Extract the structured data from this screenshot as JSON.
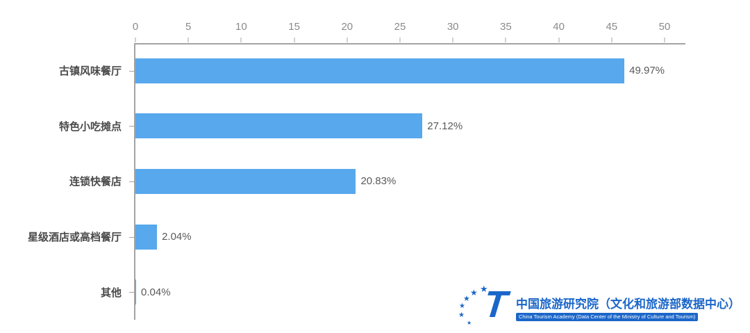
{
  "chart_data": {
    "type": "bar",
    "orientation": "horizontal",
    "title": "",
    "categories": [
      "古镇风味餐厅",
      "特色小吃摊点",
      "连锁快餐店",
      "星级酒店或高档餐厅",
      "其他"
    ],
    "values": [
      49.97,
      27.12,
      20.83,
      2.04,
      0.04
    ],
    "value_labels": [
      "49.97%",
      "27.12%",
      "20.83%",
      "2.04%",
      "0.04%"
    ],
    "xlim": [
      0,
      50
    ],
    "x_ticks": [
      0,
      5,
      10,
      15,
      20,
      25,
      30,
      35,
      40,
      45,
      50
    ],
    "axis_position": "top",
    "grid": false,
    "legend_position": "none",
    "bar_color": "#57a8ed",
    "axis_color": "#a3a3a3"
  },
  "footer": {
    "logo_icon": "china-tourism-academy-t-with-stars",
    "org_name_cn": "中国旅游研究院（文化和旅游部数据中心）",
    "org_name_en": "China Tourism Academy (Data Center of the Ministry of Culture and Tourism)",
    "brand_color": "#1b66c9"
  }
}
